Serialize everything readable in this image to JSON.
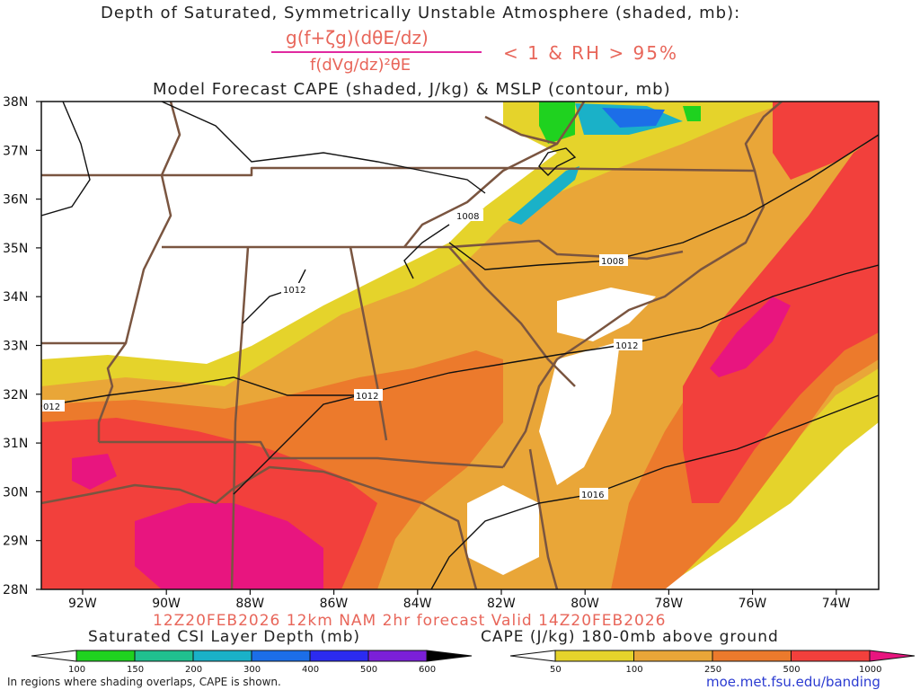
{
  "header": {
    "title": "Depth of Saturated, Symmetrically Unstable Atmosphere (shaded, mb):",
    "formula_num": "g(f+ζg)(dθE/dz)",
    "formula_den": "f(dVg/dz)²θE",
    "condition": "< 1 & RH > 95%",
    "subtitle": "Model Forecast CAPE (shaded, J/kg) & MSLP (contour, mb)"
  },
  "axes": {
    "lat_labels": [
      "38N",
      "37N",
      "36N",
      "35N",
      "34N",
      "33N",
      "32N",
      "31N",
      "30N",
      "29N",
      "28N"
    ],
    "lon_labels": [
      "92W",
      "90W",
      "88W",
      "86W",
      "84W",
      "82W",
      "80W",
      "78W",
      "76W",
      "74W"
    ]
  },
  "isobars": [
    "1008",
    "1008",
    "1012",
    "1012",
    "1012",
    "1016",
    "012"
  ],
  "valid_line": "12Z20FEB2026 12km NAM 2hr forecast Valid 14Z20FEB2026",
  "legend_csi": {
    "title": "Saturated CSI Layer Depth (mb)",
    "ticks": [
      "100",
      "150",
      "200",
      "300",
      "400",
      "500",
      "600"
    ],
    "colors": [
      "#ffffff",
      "#1fd21f",
      "#20c08f",
      "#1ab1c8",
      "#1c6ee8",
      "#2b2bf0",
      "#7b1fd8",
      "#000000"
    ]
  },
  "legend_cape": {
    "title": "CAPE (J/kg) 180-0mb above ground",
    "ticks": [
      "50",
      "100",
      "250",
      "500",
      "1000"
    ],
    "colors": [
      "#ffffff",
      "#e5d32b",
      "#e9a638",
      "#ec7a2c",
      "#f2403c",
      "#e8157f"
    ]
  },
  "footnote": "In regions where shading overlaps, CAPE is shown.",
  "url": "moe.met.fsu.edu/banding"
}
